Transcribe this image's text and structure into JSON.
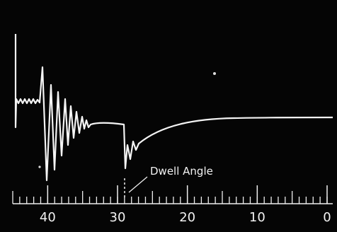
{
  "scale": {
    "range": [
      45,
      0
    ],
    "ticks": [
      40,
      30,
      20,
      10,
      0
    ]
  },
  "annotation": "Dwell Angle"
}
